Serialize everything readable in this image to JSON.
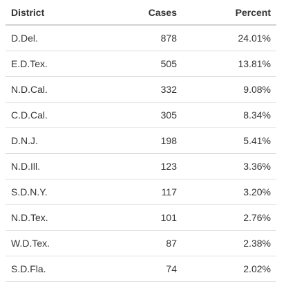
{
  "table": {
    "header": [
      "District",
      "Cases",
      "Percent"
    ],
    "rows": [
      [
        "D.Del.",
        "878",
        "24.01%"
      ],
      [
        "E.D.Tex.",
        "505",
        "13.81%"
      ],
      [
        "N.D.Cal.",
        "332",
        "9.08%"
      ],
      [
        "C.D.Cal.",
        "305",
        "8.34%"
      ],
      [
        "D.N.J.",
        "198",
        "5.41%"
      ],
      [
        "N.D.Ill.",
        "123",
        "3.36%"
      ],
      [
        "S.D.N.Y.",
        "117",
        "3.20%"
      ],
      [
        "N.D.Tex.",
        "101",
        "2.76%"
      ],
      [
        "W.D.Tex.",
        "87",
        "2.38%"
      ],
      [
        "S.D.Fla.",
        "74",
        "2.02%"
      ]
    ]
  }
}
